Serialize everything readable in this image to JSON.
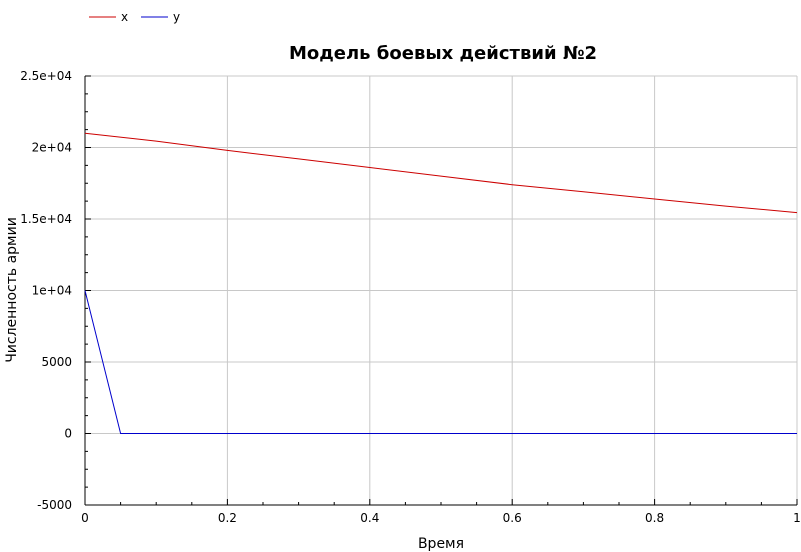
{
  "chart_data": {
    "type": "line",
    "title": "Модель боевых действий №2",
    "xlabel": "Время",
    "ylabel": "Численность  армии",
    "xlim": [
      0,
      1
    ],
    "ylim": [
      -5000,
      25000
    ],
    "x_ticks": [
      0,
      0.2,
      0.4,
      0.6,
      0.8,
      1
    ],
    "x_tick_labels": [
      "0",
      "0.2",
      "0.4",
      "0.6",
      "0.8",
      "1"
    ],
    "y_ticks": [
      -5000,
      0,
      5000,
      10000,
      15000,
      20000,
      25000
    ],
    "y_tick_labels": [
      "-5000",
      "0",
      "5000",
      "1e+04",
      "1.5e+04",
      "2e+04",
      "2.5e+04"
    ],
    "grid": true,
    "legend_position": "top-left, above plot",
    "series": [
      {
        "name": "x",
        "color": "#cc0000",
        "x": [
          0,
          0.1,
          0.2,
          0.3,
          0.4,
          0.5,
          0.6,
          0.7,
          0.8,
          0.9,
          1.0
        ],
        "y": [
          21000,
          20450,
          19800,
          19200,
          18600,
          18000,
          17400,
          16900,
          16400,
          15900,
          15450
        ]
      },
      {
        "name": "y",
        "color": "#0000cc",
        "x": [
          0,
          0.05,
          0.1,
          0.2,
          0.4,
          0.6,
          0.8,
          1.0
        ],
        "y": [
          10000,
          0,
          0,
          0,
          0,
          0,
          0,
          0
        ]
      }
    ]
  }
}
